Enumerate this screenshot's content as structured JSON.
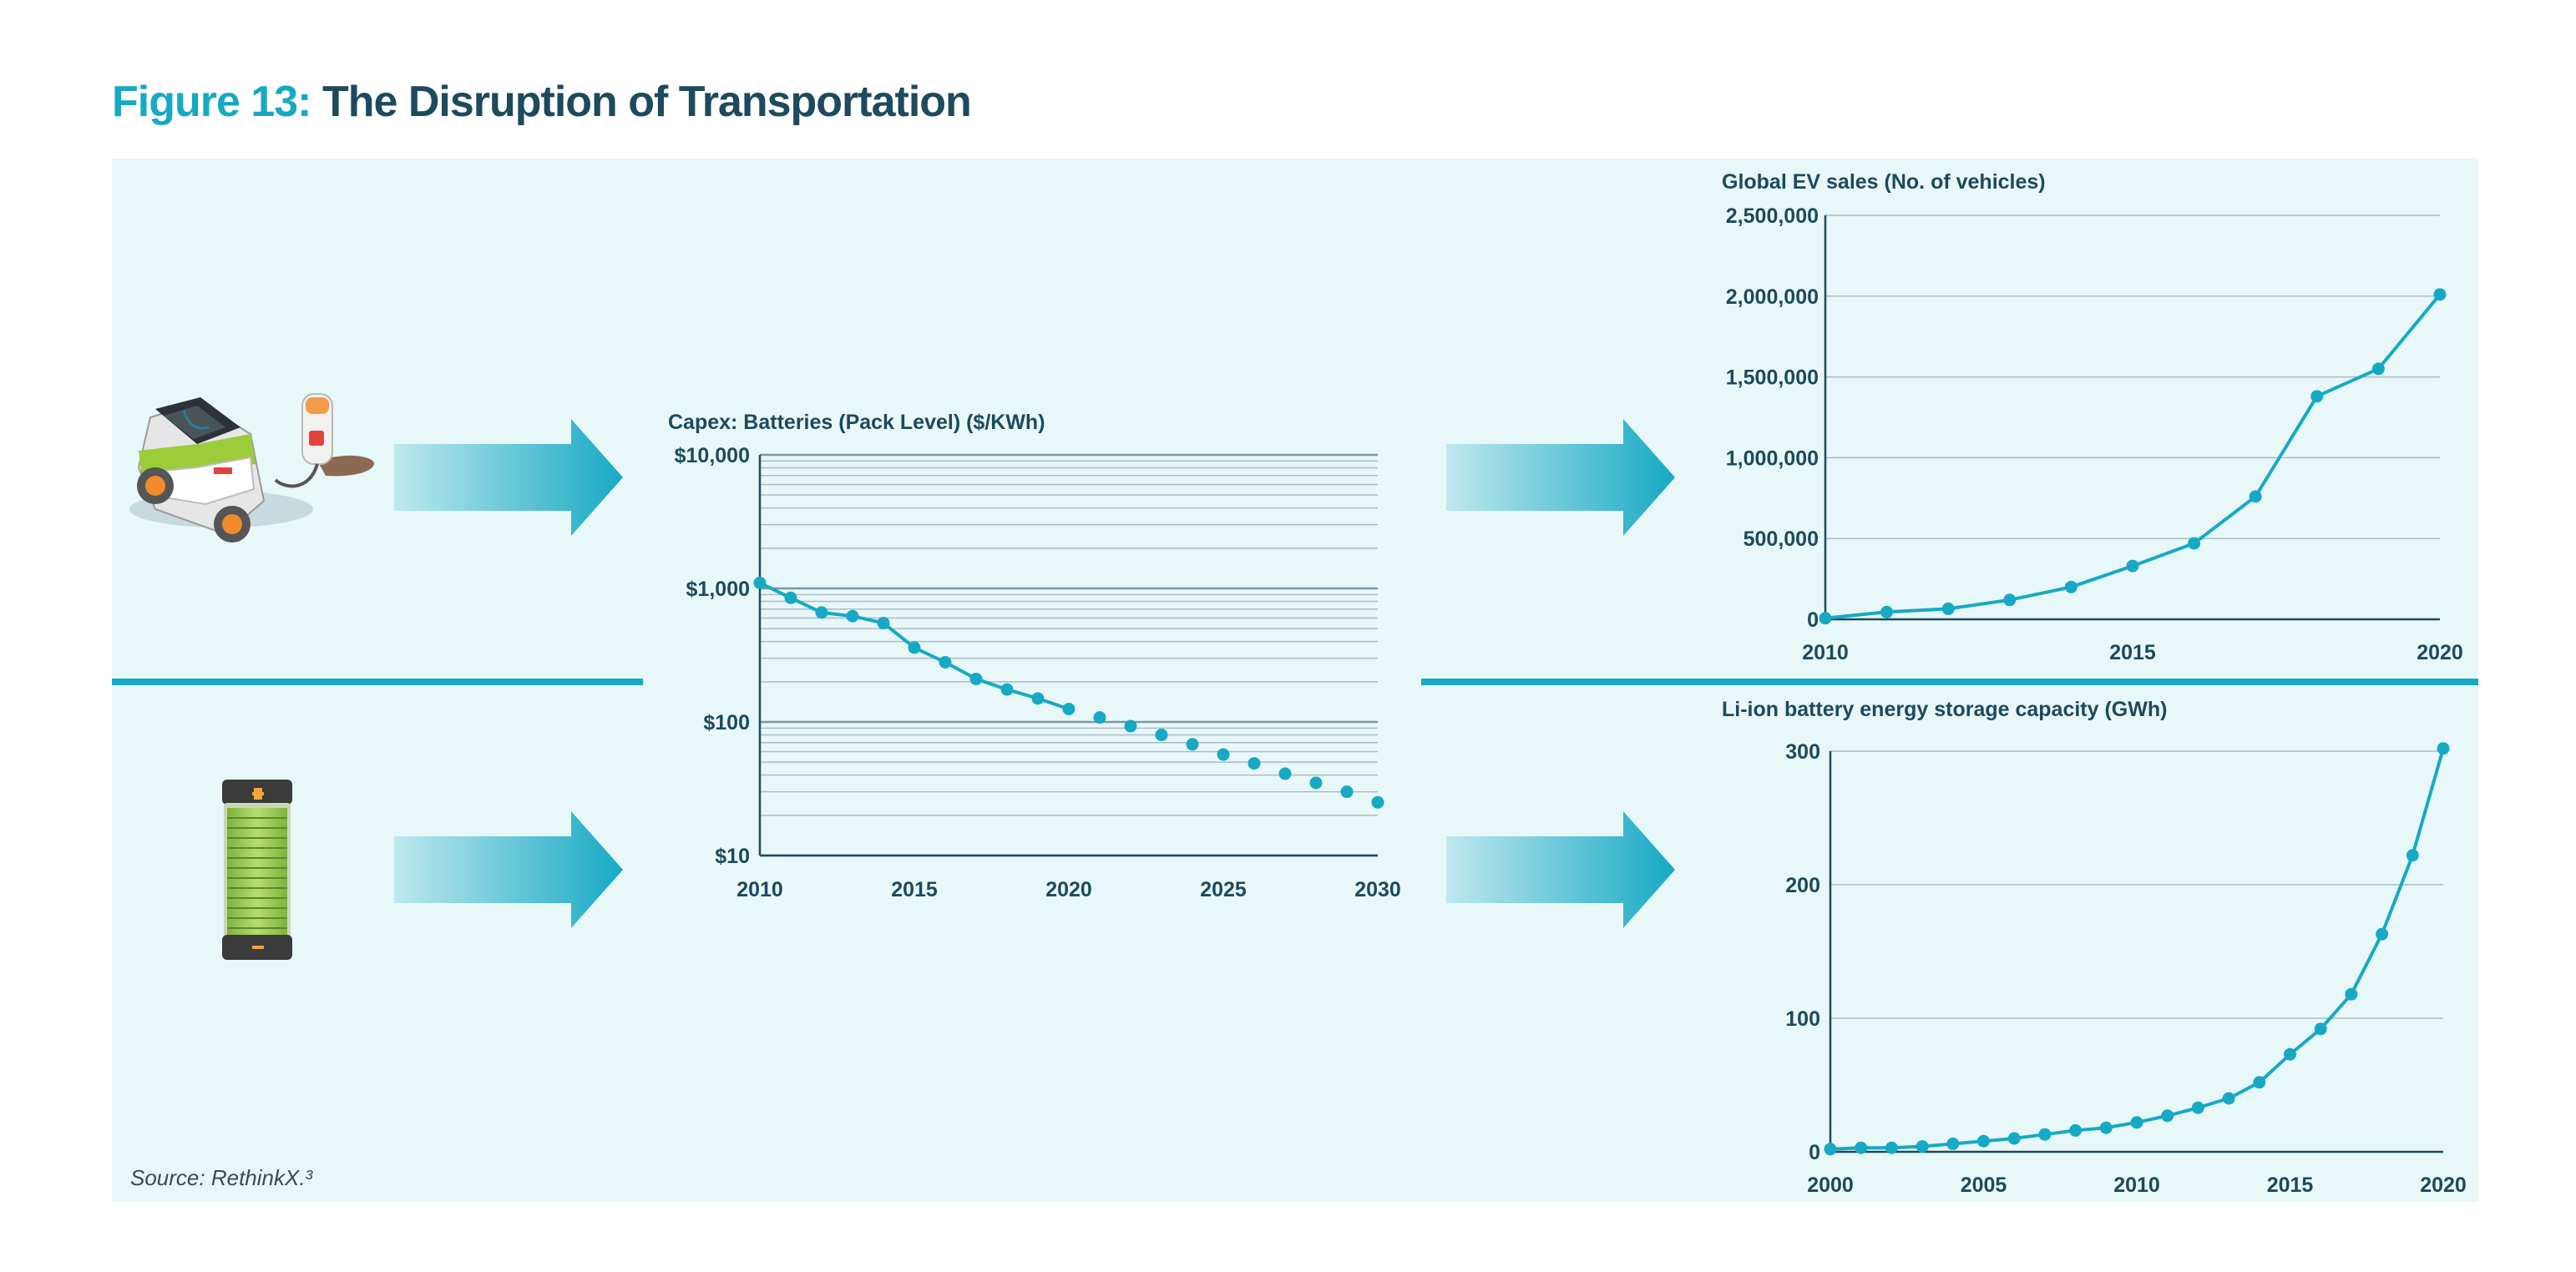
{
  "figure": {
    "label": "Figure 13:",
    "title": "The Disruption of Transportation",
    "source": "Source: RethinkX.³"
  },
  "colors": {
    "accent": "#17a9c4",
    "navy": "#1d4a5c",
    "panel": "#e8f7f8",
    "grid": "#a9bdc4"
  },
  "icons": [
    "electric-car-charging-icon",
    "battery-icon",
    "arrow-right-icon"
  ],
  "chart_data": [
    {
      "type": "line",
      "title": "Capex: Batteries (Pack Level) ($/KWh)",
      "yscale": "log",
      "ylim": [
        10,
        10000
      ],
      "yticks": [
        10,
        100,
        1000,
        10000
      ],
      "ytick_labels": [
        "$10",
        "$100",
        "$1,000",
        "$10,000"
      ],
      "xlim": [
        2010,
        2030
      ],
      "xticks": [
        2010,
        2015,
        2020,
        2025,
        2030
      ],
      "series": [
        {
          "style": "line-with-markers",
          "x": [
            2010,
            2011,
            2012,
            2013,
            2014,
            2015,
            2016,
            2017,
            2018,
            2019,
            2020
          ],
          "y": [
            1100,
            850,
            660,
            620,
            550,
            360,
            280,
            210,
            175,
            150,
            125
          ]
        },
        {
          "style": "dots",
          "x": [
            2021,
            2022,
            2023,
            2024,
            2025,
            2026,
            2027,
            2028,
            2029,
            2030
          ],
          "y": [
            108,
            93,
            80,
            68,
            57,
            49,
            41,
            35,
            30,
            25
          ]
        }
      ]
    },
    {
      "type": "line",
      "title": "Global EV sales (No. of vehicles)",
      "ylim": [
        0,
        2500000
      ],
      "yticks": [
        0,
        500000,
        1000000,
        1500000,
        2000000,
        2500000
      ],
      "ytick_labels": [
        "0",
        "500,000",
        "1,000,000",
        "1,500,000",
        "2,000,000",
        "2,500,000"
      ],
      "xlim": [
        2010,
        2020
      ],
      "xticks": [
        2010,
        2015,
        2020
      ],
      "series": [
        {
          "style": "line-with-markers",
          "x": [
            2010,
            2011,
            2012,
            2013,
            2014,
            2015,
            2016,
            2017,
            2018,
            2019,
            2020
          ],
          "y": [
            7000,
            45000,
            65000,
            120000,
            200000,
            330000,
            470000,
            760000,
            1380000,
            1550000,
            2010000
          ]
        }
      ]
    },
    {
      "type": "line",
      "title": "Li-ion battery energy storage capacity (GWh)",
      "ylim": [
        0,
        300
      ],
      "yticks": [
        0,
        100,
        200,
        300
      ],
      "ytick_labels": [
        "0",
        "100",
        "200",
        "300"
      ],
      "xlim": [
        2000,
        2020
      ],
      "xticks": [
        2000,
        2005,
        2010,
        2015,
        2020
      ],
      "series": [
        {
          "style": "line-with-markers",
          "x": [
            2000,
            2001,
            2002,
            2003,
            2004,
            2005,
            2006,
            2007,
            2008,
            2009,
            2010,
            2011,
            2012,
            2013,
            2014,
            2015,
            2016,
            2017,
            2018,
            2019,
            2020
          ],
          "y": [
            2,
            3,
            3,
            4,
            6,
            8,
            10,
            13,
            16,
            18,
            22,
            27,
            33,
            40,
            52,
            73,
            92,
            118,
            163,
            222,
            302
          ]
        }
      ]
    }
  ]
}
